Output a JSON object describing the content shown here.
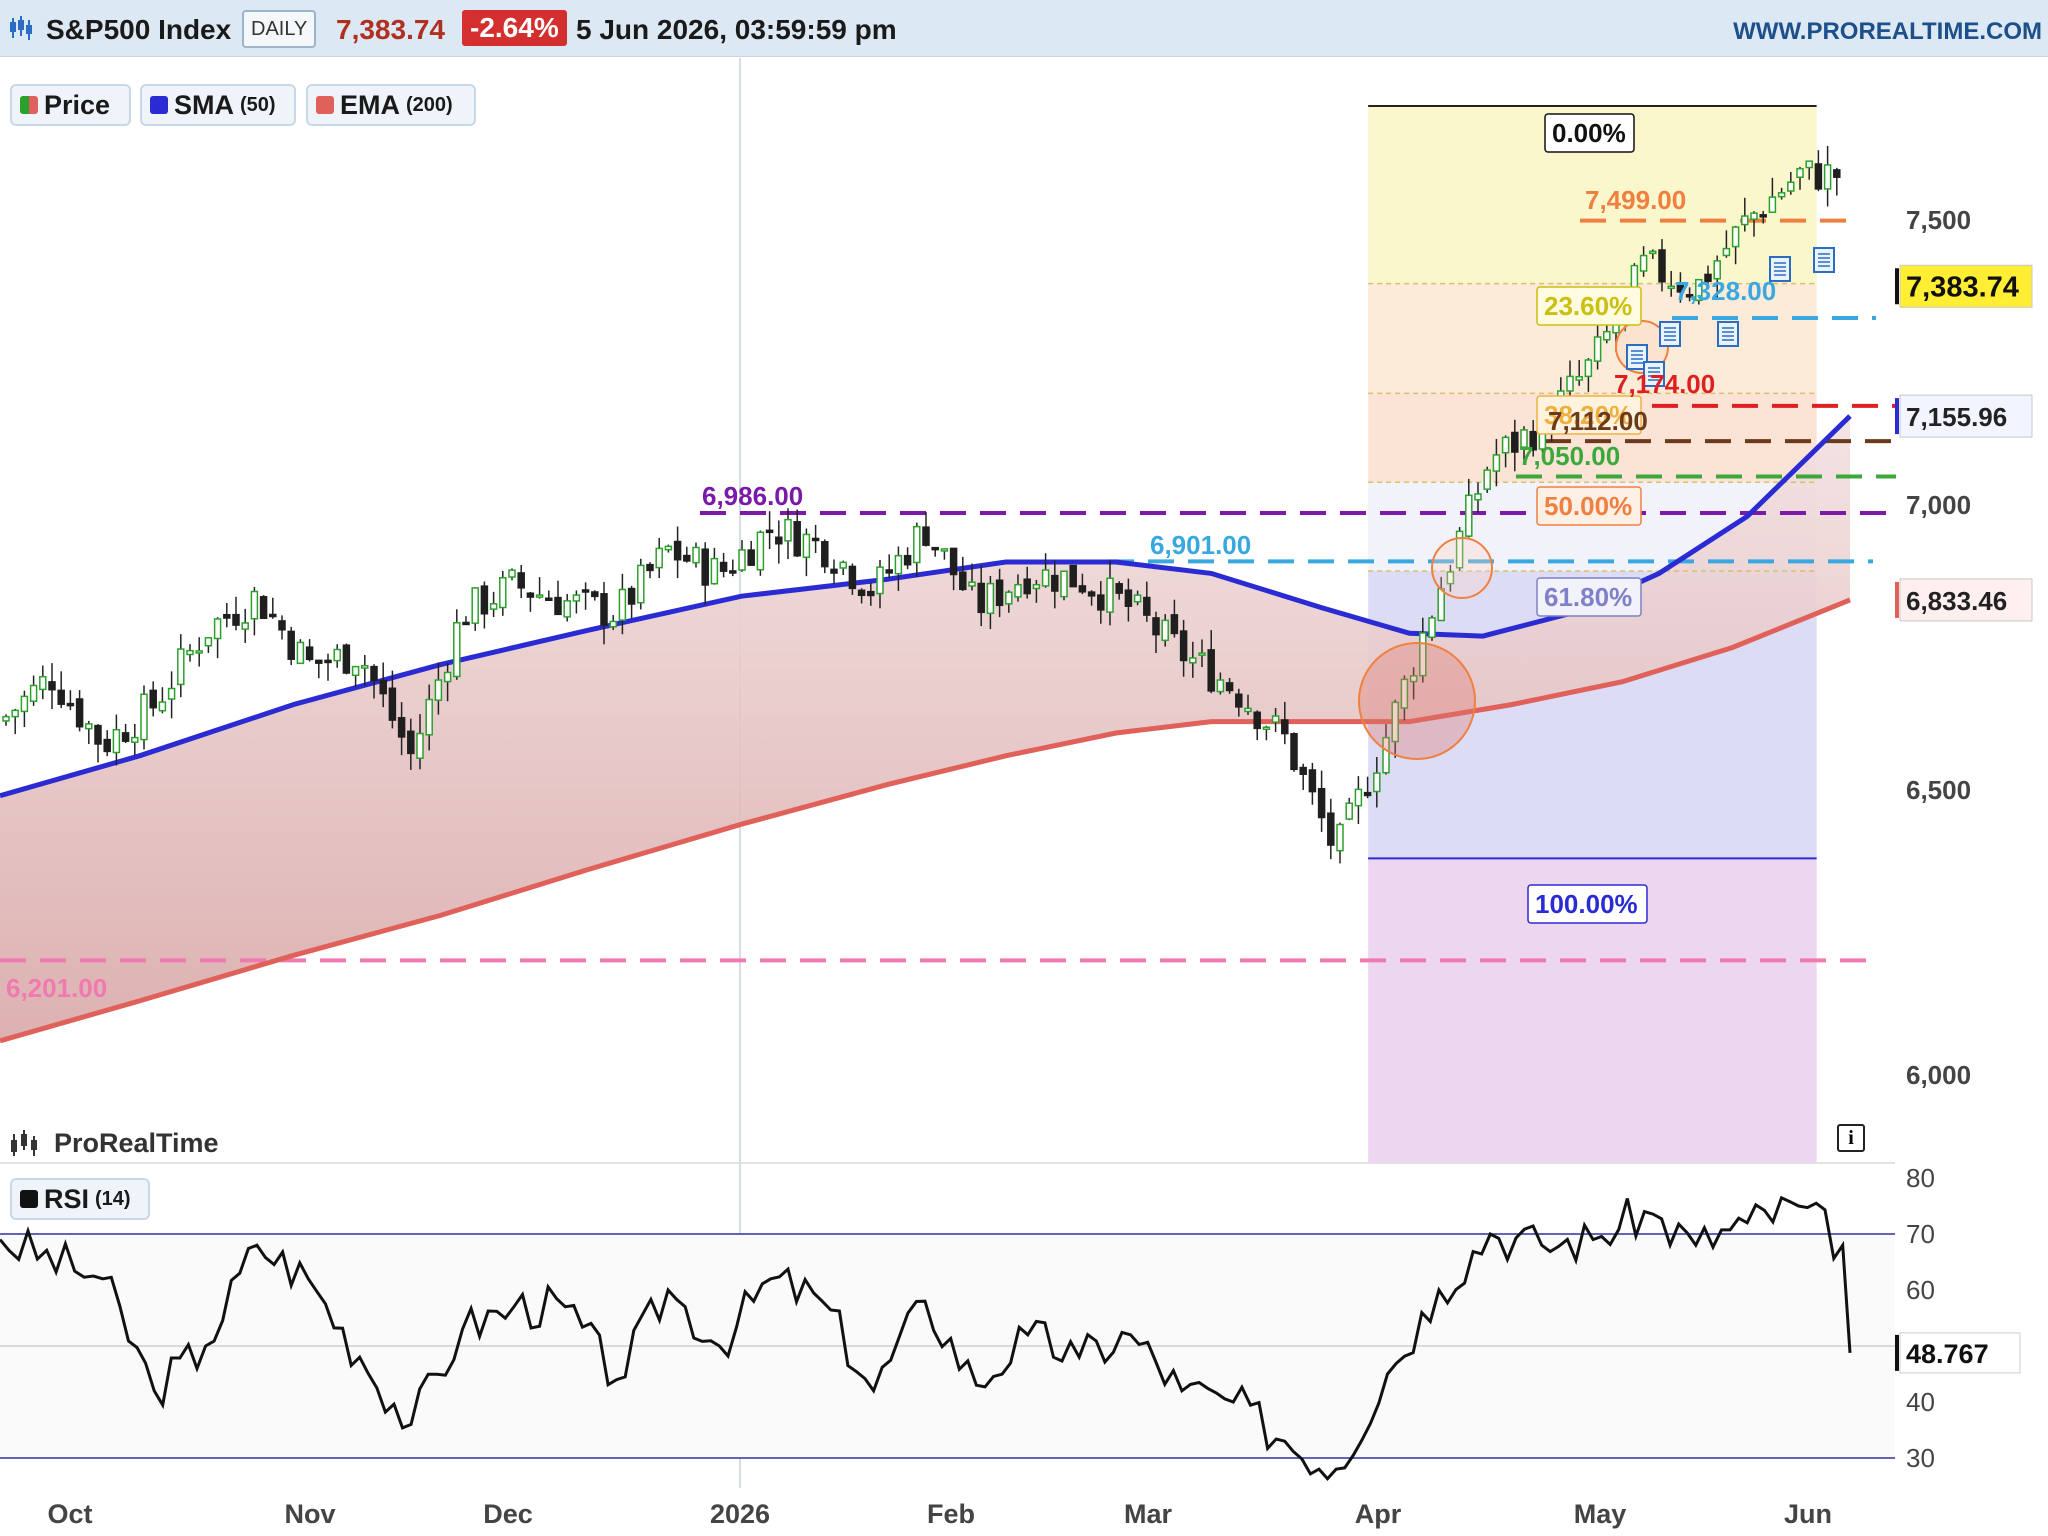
{
  "header": {
    "instrument": "S&P500 Index",
    "period": "DAILY",
    "last_price": "7,383.74",
    "change": "-2.64%",
    "datetime": "5 Jun 2026, 03:59:59 pm",
    "brand": "WWW.PROREALTIME.COM"
  },
  "watermark": "ProRealTime",
  "legend": [
    {
      "name": "Price",
      "param": ""
    },
    {
      "name": "SMA",
      "param": "(50)"
    },
    {
      "name": "EMA",
      "param": "(200)"
    }
  ],
  "rsi_legend": {
    "name": "RSI",
    "param": "(14)"
  },
  "info_icon": "info-icon",
  "colors": {
    "header_bg": "#dce8f3",
    "up": "#2ca02c",
    "down": "#1f1f1f",
    "sma": "#2b2bd4",
    "ema": "#e0605a",
    "change_badge": "#d32f2f",
    "last_badge": "#ffee33"
  },
  "chart_data": {
    "type": "line",
    "title": "S&P500 Index",
    "y_axis": {
      "ticks": [
        "7,500",
        "7,000",
        "6,500",
        "6,000"
      ],
      "range": [
        6000,
        7700
      ]
    },
    "x_axis": {
      "ticks": [
        "Oct",
        "Nov",
        "Dec",
        "2026",
        "Feb",
        "Mar",
        "Apr",
        "May",
        "Jun"
      ]
    },
    "price_path": [
      {
        "date": "2025-09-26",
        "close": 6620
      },
      {
        "date": "2025-10-03",
        "close": 6700
      },
      {
        "date": "2025-10-10",
        "close": 6580
      },
      {
        "date": "2025-10-17",
        "close": 6650
      },
      {
        "date": "2025-10-24",
        "close": 6780
      },
      {
        "date": "2025-10-31",
        "close": 6840
      },
      {
        "date": "2025-11-07",
        "close": 6720
      },
      {
        "date": "2025-11-14",
        "close": 6740
      },
      {
        "date": "2025-11-21",
        "close": 6560
      },
      {
        "date": "2025-11-28",
        "close": 6810
      },
      {
        "date": "2025-12-05",
        "close": 6860
      },
      {
        "date": "2025-12-12",
        "close": 6830
      },
      {
        "date": "2025-12-19",
        "close": 6810
      },
      {
        "date": "2025-12-26",
        "close": 6920
      },
      {
        "date": "2026-01-02",
        "close": 6880
      },
      {
        "date": "2026-01-09",
        "close": 6960
      },
      {
        "date": "2026-01-16",
        "close": 6930
      },
      {
        "date": "2026-01-23",
        "close": 6850
      },
      {
        "date": "2026-01-30",
        "close": 6960
      },
      {
        "date": "2026-02-06",
        "close": 6820
      },
      {
        "date": "2026-02-13",
        "close": 6880
      },
      {
        "date": "2026-02-20",
        "close": 6870
      },
      {
        "date": "2026-02-27",
        "close": 6820
      },
      {
        "date": "2026-03-06",
        "close": 6740
      },
      {
        "date": "2026-03-13",
        "close": 6680
      },
      {
        "date": "2026-03-20",
        "close": 6590
      },
      {
        "date": "2026-03-27",
        "close": 6390
      },
      {
        "date": "2026-04-03",
        "close": 6600
      },
      {
        "date": "2026-04-10",
        "close": 6850
      },
      {
        "date": "2026-04-17",
        "close": 7080
      },
      {
        "date": "2026-04-24",
        "close": 7140
      },
      {
        "date": "2026-05-01",
        "close": 7250
      },
      {
        "date": "2026-05-08",
        "close": 7420
      },
      {
        "date": "2026-05-15",
        "close": 7380
      },
      {
        "date": "2026-05-22",
        "close": 7500
      },
      {
        "date": "2026-05-29",
        "close": 7580
      },
      {
        "date": "2026-06-04",
        "close": 7580
      },
      {
        "date": "2026-06-05",
        "close": 7383.74
      }
    ],
    "series": [
      {
        "name": "SMA (50)",
        "last": 7155.96,
        "points": [
          [
            "2025-09-26",
            6490
          ],
          [
            "2025-10-15",
            6560
          ],
          [
            "2025-11-05",
            6650
          ],
          [
            "2025-11-25",
            6720
          ],
          [
            "2025-12-15",
            6780
          ],
          [
            "2026-01-05",
            6840
          ],
          [
            "2026-01-25",
            6870
          ],
          [
            "2026-02-10",
            6900
          ],
          [
            "2026-02-25",
            6900
          ],
          [
            "2026-03-10",
            6880
          ],
          [
            "2026-03-25",
            6820
          ],
          [
            "2026-04-06",
            6775
          ],
          [
            "2026-04-16",
            6770
          ],
          [
            "2026-04-28",
            6810
          ],
          [
            "2026-05-10",
            6880
          ],
          [
            "2026-05-22",
            6980
          ],
          [
            "2026-06-05",
            7155.96
          ]
        ]
      },
      {
        "name": "EMA (200)",
        "last": 6833.46,
        "points": [
          [
            "2025-09-26",
            6060
          ],
          [
            "2025-10-15",
            6130
          ],
          [
            "2025-11-05",
            6210
          ],
          [
            "2025-11-25",
            6280
          ],
          [
            "2025-12-15",
            6360
          ],
          [
            "2026-01-05",
            6440
          ],
          [
            "2026-01-25",
            6510
          ],
          [
            "2026-02-10",
            6560
          ],
          [
            "2026-02-25",
            6600
          ],
          [
            "2026-03-10",
            6620
          ],
          [
            "2026-03-25",
            6620
          ],
          [
            "2026-04-06",
            6620
          ],
          [
            "2026-04-20",
            6650
          ],
          [
            "2026-05-05",
            6690
          ],
          [
            "2026-05-20",
            6750
          ],
          [
            "2026-06-05",
            6833.46
          ]
        ]
      },
      {
        "name": "RSI (14)",
        "last": 48.767,
        "points": [
          [
            "2025-09-26",
            69
          ],
          [
            "2025-10-10",
            62
          ],
          [
            "2025-10-17",
            42
          ],
          [
            "2025-10-24",
            50
          ],
          [
            "2025-10-31",
            68
          ],
          [
            "2025-11-07",
            62
          ],
          [
            "2025-11-14",
            48
          ],
          [
            "2025-11-21",
            36
          ],
          [
            "2025-11-28",
            53
          ],
          [
            "2025-12-05",
            57
          ],
          [
            "2025-12-12",
            57
          ],
          [
            "2025-12-19",
            44
          ],
          [
            "2025-12-26",
            60
          ],
          [
            "2026-01-02",
            50
          ],
          [
            "2026-01-09",
            62
          ],
          [
            "2026-01-16",
            58
          ],
          [
            "2026-01-23",
            42
          ],
          [
            "2026-01-30",
            58
          ],
          [
            "2026-02-06",
            43
          ],
          [
            "2026-02-13",
            52
          ],
          [
            "2026-02-20",
            48
          ],
          [
            "2026-02-27",
            52
          ],
          [
            "2026-03-06",
            42
          ],
          [
            "2026-03-13",
            40
          ],
          [
            "2026-03-20",
            33
          ],
          [
            "2026-03-27",
            28
          ],
          [
            "2026-04-03",
            45
          ],
          [
            "2026-04-10",
            60
          ],
          [
            "2026-04-17",
            70
          ],
          [
            "2026-04-24",
            68
          ],
          [
            "2026-05-01",
            69
          ],
          [
            "2026-05-08",
            74
          ],
          [
            "2026-05-15",
            68
          ],
          [
            "2026-05-22",
            72
          ],
          [
            "2026-05-29",
            75
          ],
          [
            "2026-06-04",
            68
          ],
          [
            "2026-06-05",
            48.767
          ]
        ]
      }
    ],
    "rsi_axis": {
      "ticks": [
        "80",
        "70",
        "60",
        "40",
        "30"
      ],
      "range": [
        25,
        82
      ],
      "bands": [
        70,
        30
      ]
    },
    "horizontal_levels": [
      {
        "label": "7,499.00",
        "value": 7499,
        "color": "#f08040"
      },
      {
        "label": "7,328.00",
        "value": 7328,
        "color": "#3aa8e0"
      },
      {
        "label": "7,174.00",
        "value": 7174,
        "color": "#e02020"
      },
      {
        "label": "7,112.00",
        "value": 7112,
        "color": "#6b3a1a"
      },
      {
        "label": "7,050.00",
        "value": 7050,
        "color": "#3aa83a"
      },
      {
        "label": "6,986.00",
        "value": 6986,
        "color": "#7a1aa8"
      },
      {
        "label": "6,901.00",
        "value": 6901,
        "color": "#3aa8e0"
      },
      {
        "label": "6,201.00",
        "value": 6201,
        "color": "#f07ab0"
      }
    ],
    "fibonacci": {
      "high": 7700,
      "low": 6380,
      "start_date": "2026-03-30",
      "end_date": "2026-06-01",
      "levels": [
        {
          "label": "0.00%",
          "ratio": 0.0
        },
        {
          "label": "23.60%",
          "ratio": 0.236
        },
        {
          "label": "38.20%",
          "ratio": 0.382
        },
        {
          "label": "50.00%",
          "ratio": 0.5
        },
        {
          "label": "61.80%",
          "ratio": 0.618
        },
        {
          "label": "100.00%",
          "ratio": 1.0
        }
      ]
    },
    "price_badges": [
      {
        "label": "7,383.74",
        "value": 7383.74
      },
      {
        "label": "7,155.96",
        "value": 7155.96
      },
      {
        "label": "6,833.46",
        "value": 6833.46
      }
    ],
    "rsi_badge": {
      "label": "48.767",
      "value": 48.767
    }
  }
}
